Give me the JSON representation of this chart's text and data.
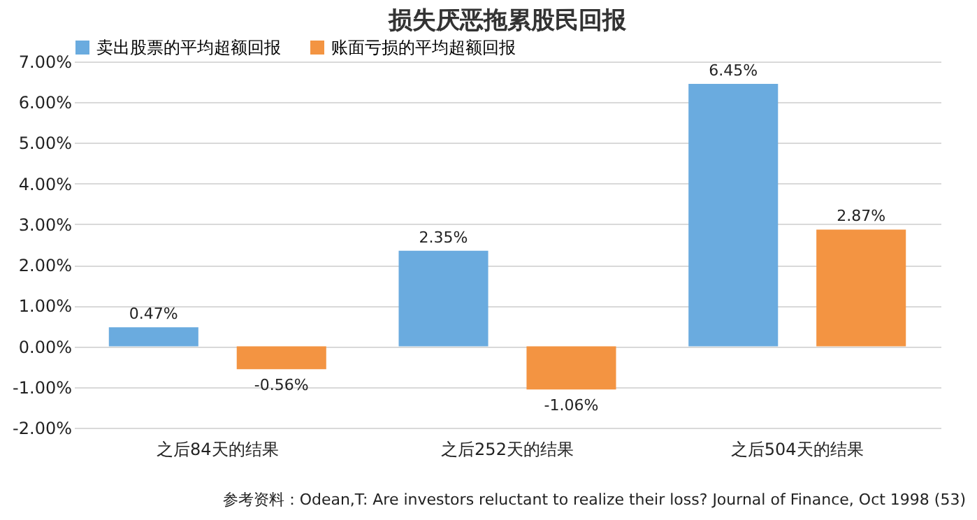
{
  "chart_data": {
    "type": "bar",
    "title": "损失厌恶拖累股民回报",
    "categories": [
      "之后84天的结果",
      "之后252天的结果",
      "之后504天的结果"
    ],
    "series": [
      {
        "name": "卖出股票的平均超额回报",
        "color": "#6aabdf",
        "values": [
          0.47,
          2.35,
          6.45
        ],
        "value_labels": [
          "0.47%",
          "2.35%",
          "6.45%"
        ]
      },
      {
        "name": "账面亏损的平均超额回报",
        "color": "#f39442",
        "values": [
          -0.56,
          -1.06,
          2.87
        ],
        "value_labels": [
          "-0.56%",
          "-1.06%",
          "2.87%"
        ]
      }
    ],
    "ylim": [
      -2,
      7
    ],
    "yticks": [
      {
        "value": -2,
        "label": "-2.00%"
      },
      {
        "value": -1,
        "label": "-1.00%"
      },
      {
        "value": 0,
        "label": "0.00%"
      },
      {
        "value": 1,
        "label": "1.00%"
      },
      {
        "value": 2,
        "label": "2.00%"
      },
      {
        "value": 3,
        "label": "3.00%"
      },
      {
        "value": 4,
        "label": "4.00%"
      },
      {
        "value": 5,
        "label": "5.00%"
      },
      {
        "value": 6,
        "label": "6.00%"
      },
      {
        "value": 7,
        "label": "7.00%"
      }
    ],
    "grid": "y",
    "legend": "top",
    "annotations": [
      "参考资料：Odean,T: Are investors reluctant to realize their loss? Journal of Finance, Oct 1998 (53)"
    ]
  }
}
